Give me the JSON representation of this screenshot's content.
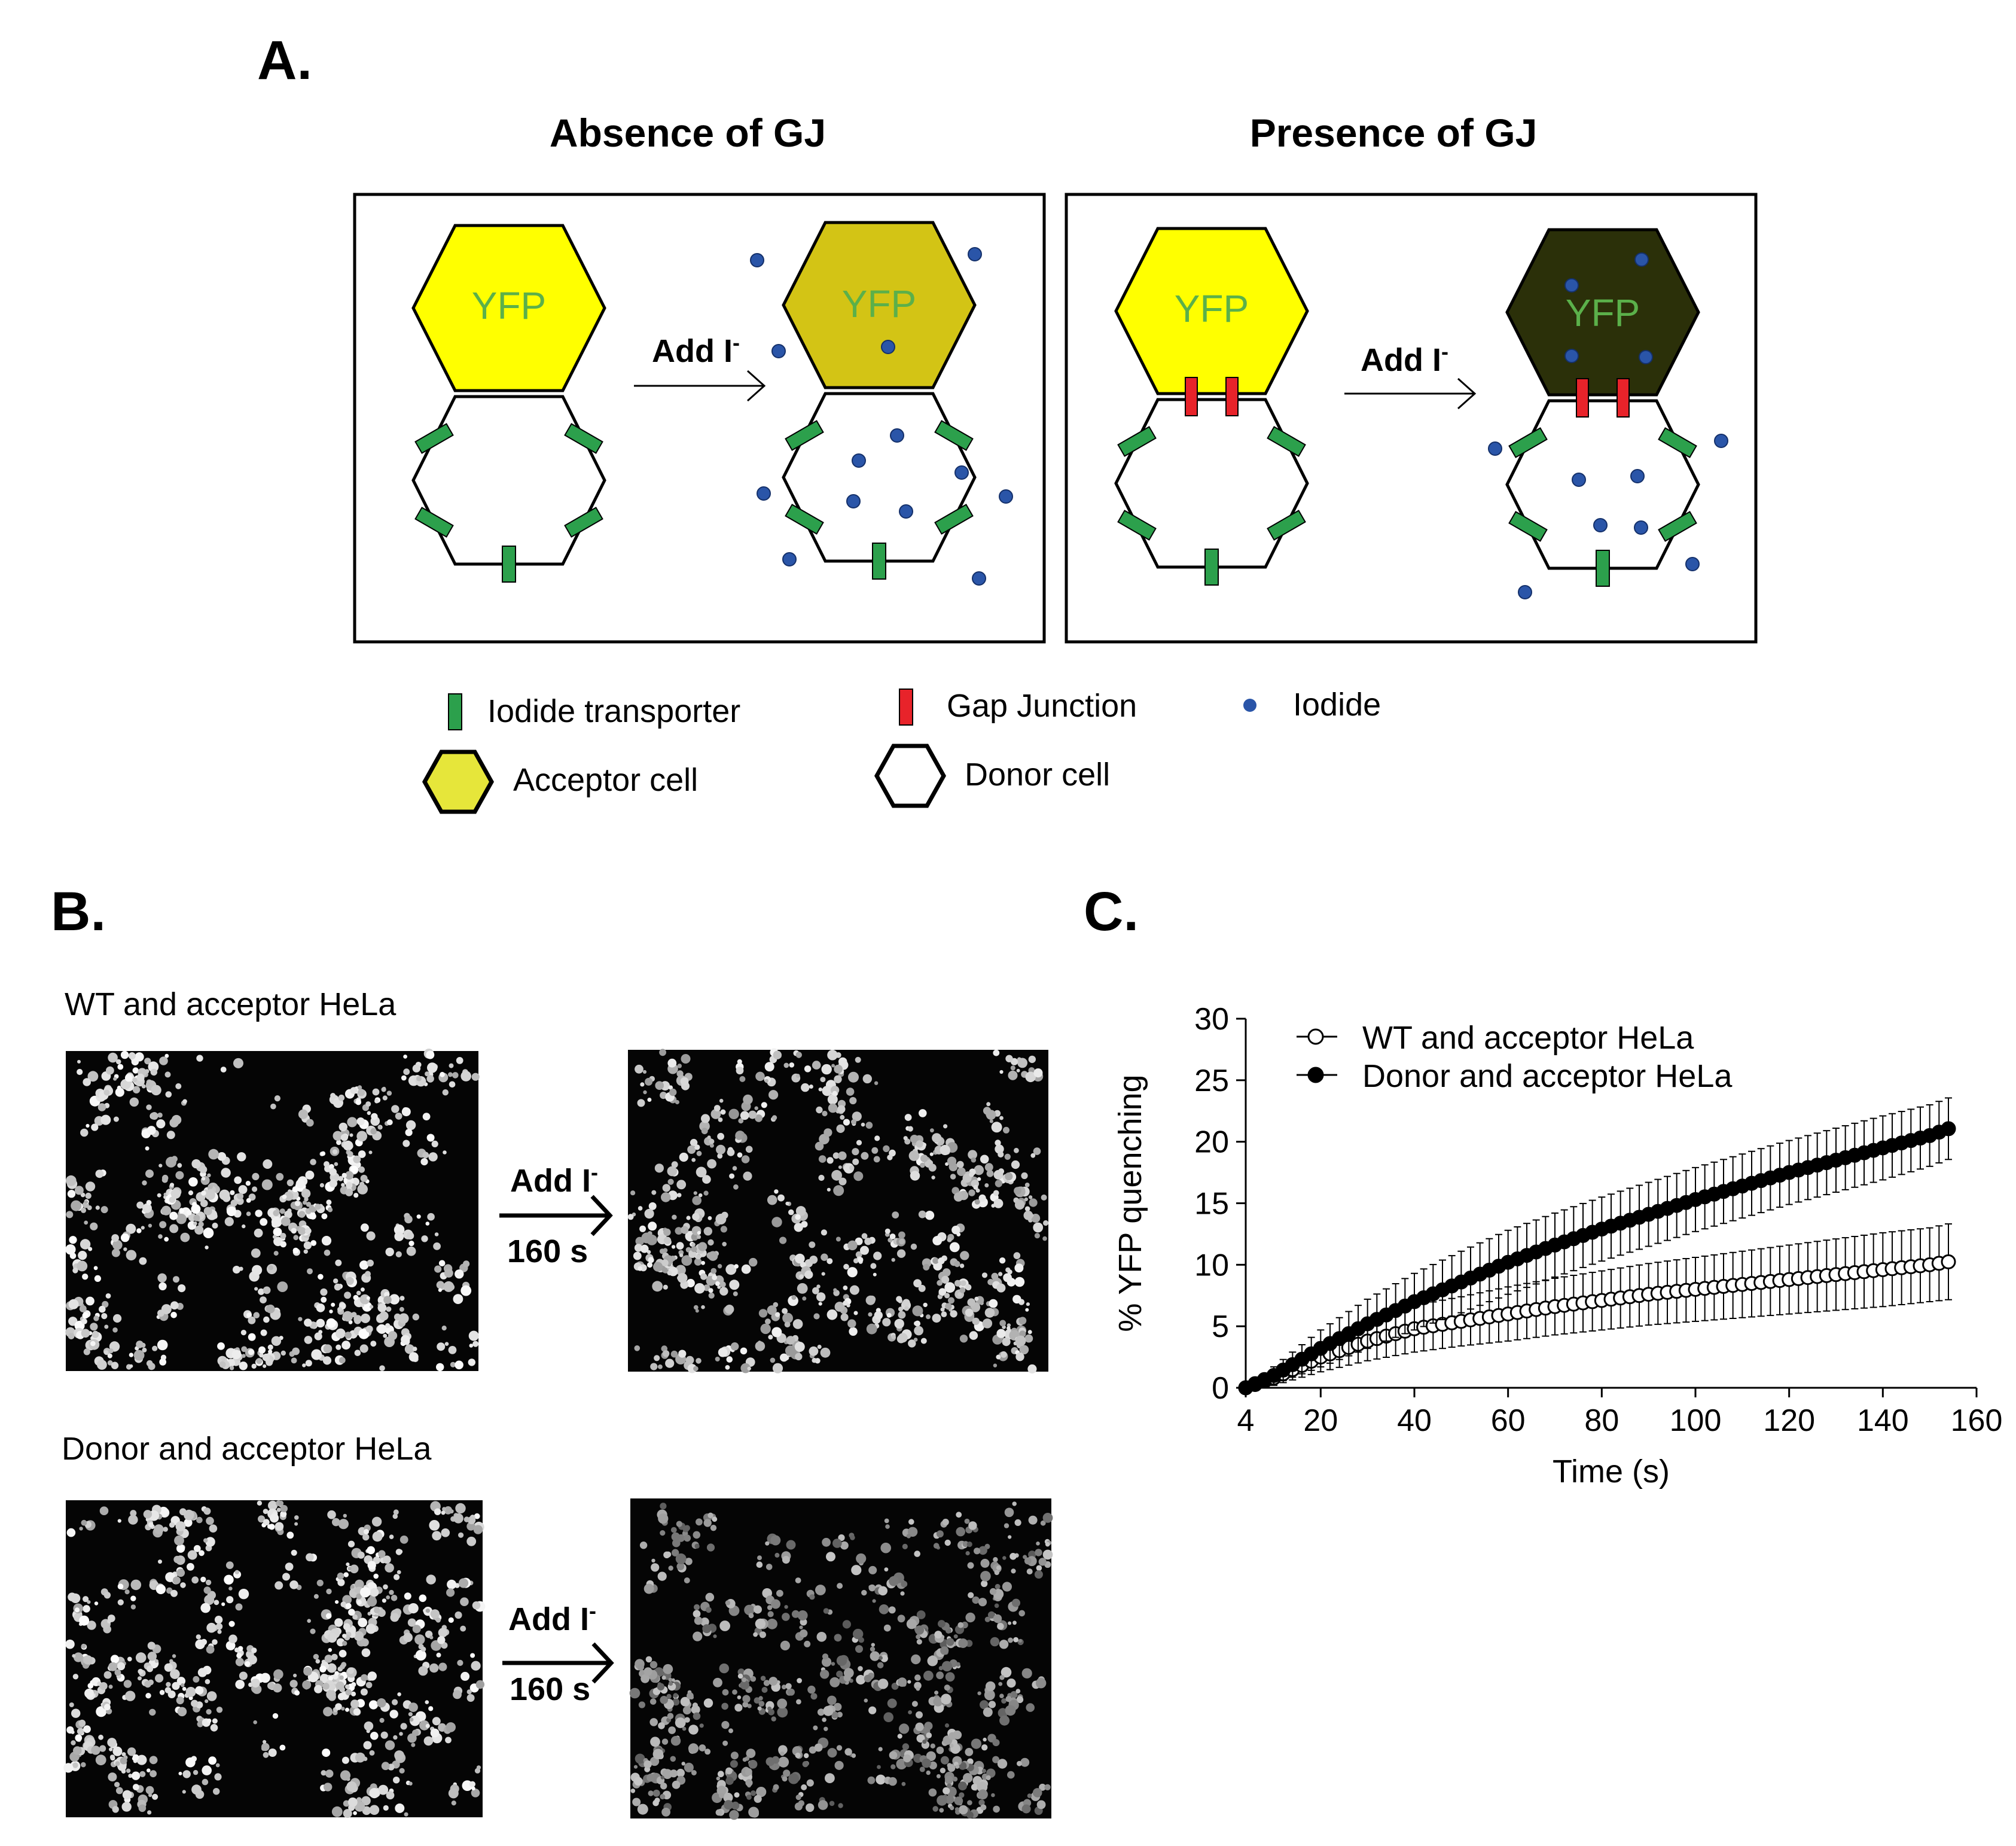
{
  "panel_a": {
    "label": "A.",
    "left_title": "Absence of GJ",
    "right_title": "Presence of GJ",
    "cell_text": "YFP",
    "arrow_text": "Add I",
    "arrow_sup": "-",
    "legend": {
      "iodide_transporter": "Iodide transporter",
      "gap_junction": "Gap Junction",
      "iodide": "Iodide",
      "acceptor_cell": "Acceptor cell",
      "donor_cell": "Donor cell"
    },
    "colors": {
      "yfp_bright": "#ffff00",
      "yfp_partial": "#d3c415",
      "yfp_quenched": "#2b3009",
      "yfp_text": "#5bb04a",
      "transporter": "#2ca04c",
      "gap_junction": "#e8232a",
      "iodide": "#2a55a8",
      "legend_acceptor": "#e6e63a"
    }
  },
  "panel_b": {
    "label": "B.",
    "row1_label": "WT and acceptor HeLa",
    "row2_label": "Donor and acceptor HeLa",
    "arrow_text": "Add I",
    "arrow_sup": "-",
    "time_text": "160 s"
  },
  "panel_c": {
    "label": "C."
  },
  "chart_data": {
    "type": "line",
    "title": "",
    "xlabel": "Time (s)",
    "ylabel": "% YFP quenching",
    "xlim": [
      4,
      160
    ],
    "ylim": [
      0,
      30
    ],
    "xticks": [
      4,
      20,
      40,
      60,
      80,
      100,
      120,
      140,
      160
    ],
    "yticks": [
      0,
      5,
      10,
      15,
      20,
      25,
      30
    ],
    "legend_position": "top-left",
    "series": [
      {
        "name": "WT and acceptor HeLa",
        "marker": "open-circle",
        "x": [
          4,
          10,
          20,
          30,
          40,
          50,
          60,
          70,
          80,
          90,
          100,
          110,
          120,
          130,
          140,
          150,
          155
        ],
        "y": [
          0,
          0.8,
          2.5,
          3.8,
          4.8,
          5.4,
          6.0,
          6.6,
          7.1,
          7.6,
          8.0,
          8.4,
          8.8,
          9.2,
          9.6,
          10.0,
          10.3
        ],
        "error": [
          0,
          0.6,
          1.2,
          1.6,
          1.9,
          2.0,
          2.2,
          2.3,
          2.4,
          2.5,
          2.6,
          2.7,
          2.8,
          2.9,
          3.0,
          3.0,
          3.1
        ]
      },
      {
        "name": "Donor and acceptor HeLa",
        "marker": "filled-circle",
        "x": [
          4,
          10,
          20,
          30,
          40,
          50,
          60,
          70,
          80,
          90,
          100,
          110,
          120,
          130,
          140,
          150,
          155
        ],
        "y": [
          0,
          1.0,
          3.2,
          5.2,
          7.0,
          8.6,
          10.2,
          11.6,
          12.9,
          14.1,
          15.3,
          16.4,
          17.5,
          18.5,
          19.5,
          20.5,
          21.2
        ],
        "error": [
          0,
          0.7,
          1.5,
          2.0,
          2.3,
          2.5,
          2.6,
          2.6,
          2.6,
          2.6,
          2.6,
          2.6,
          2.6,
          2.6,
          2.6,
          2.5,
          2.5
        ]
      }
    ]
  }
}
